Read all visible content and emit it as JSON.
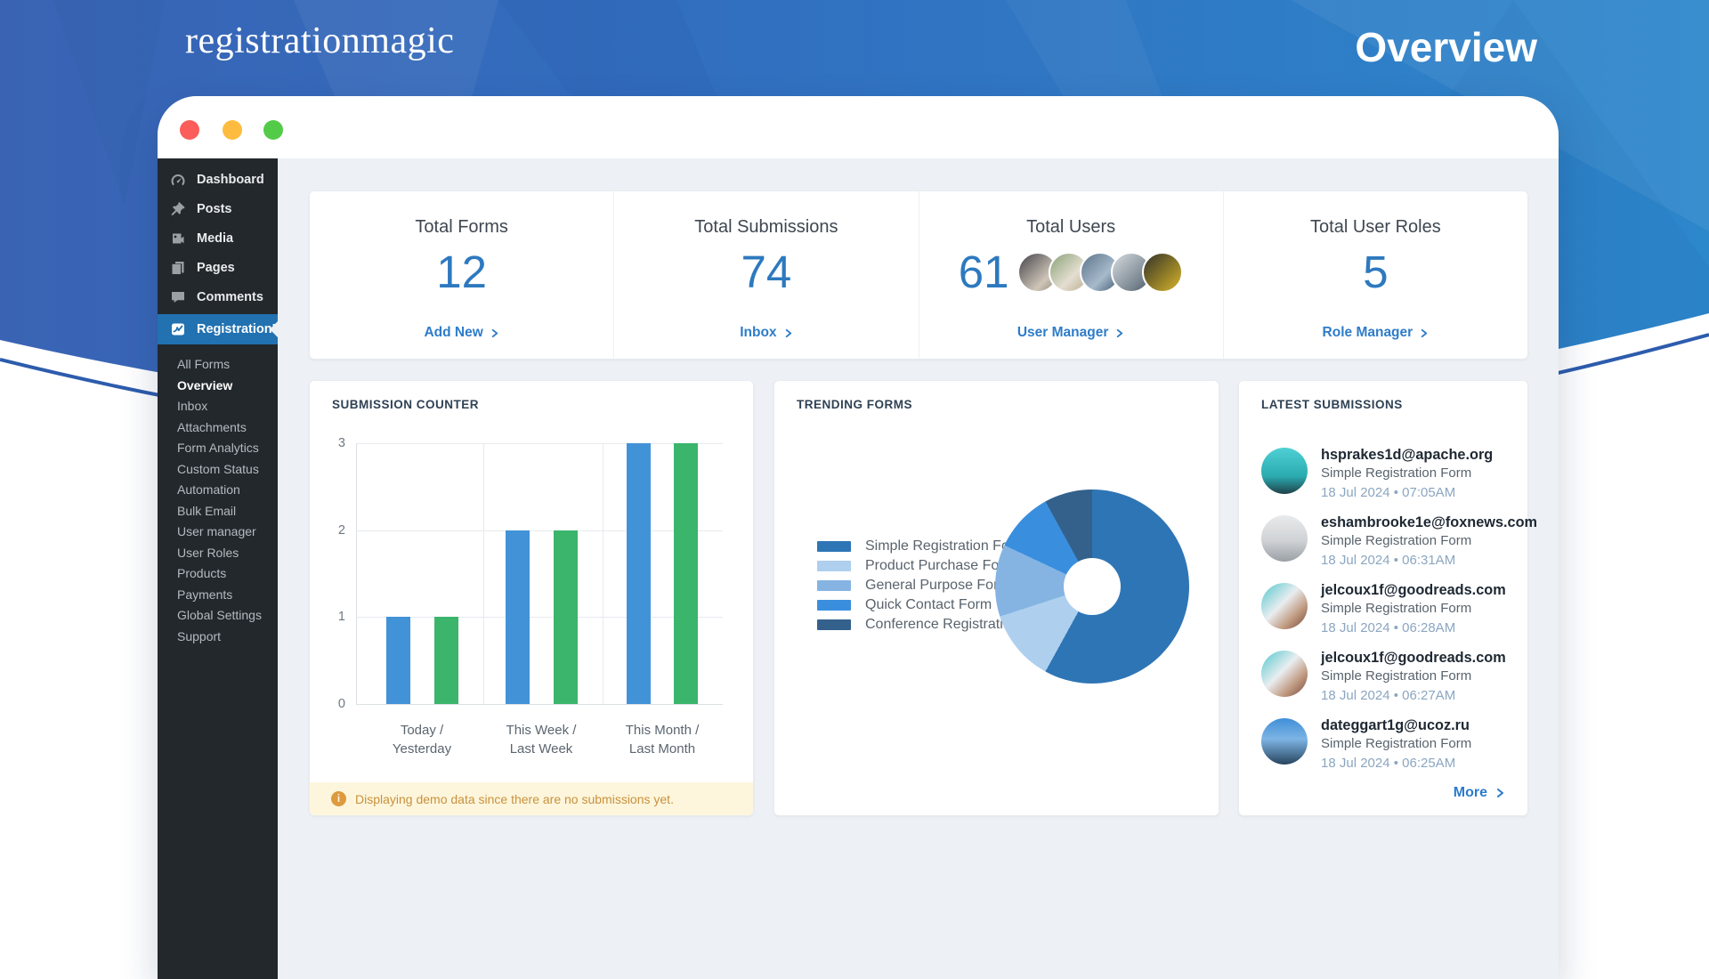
{
  "banner": {
    "logo_text": "registrationmagic",
    "page_title": "Overview"
  },
  "window": {
    "traffic_lights": [
      {
        "name": "close",
        "color": "#fb5d5b"
      },
      {
        "name": "minimize",
        "color": "#fdbc40"
      },
      {
        "name": "zoom",
        "color": "#54ca49"
      }
    ]
  },
  "sidebar": {
    "items": [
      {
        "label": "Dashboard"
      },
      {
        "label": "Posts"
      },
      {
        "label": "Media"
      },
      {
        "label": "Pages"
      },
      {
        "label": "Comments"
      },
      {
        "label": "RegistrationMagic"
      }
    ],
    "active_item": "RegistrationMagic",
    "submenu": [
      "All Forms",
      "Overview",
      "Inbox",
      "Attachments",
      "Form Analytics",
      "Custom Status",
      "Automation",
      "Bulk Email",
      "User manager",
      "User Roles",
      "Products",
      "Payments",
      "Global Settings",
      "Support"
    ],
    "active_submenu": "Overview"
  },
  "stats": {
    "cards": [
      {
        "label": "Total Forms",
        "value": "12",
        "link_label": "Add New"
      },
      {
        "label": "Total Submissions",
        "value": "74",
        "link_label": "Inbox"
      },
      {
        "label": "Total Users",
        "value": "61",
        "link_label": "User Manager",
        "avatar_count": 5
      },
      {
        "label": "Total User Roles",
        "value": "5",
        "link_label": "Role Manager"
      }
    ],
    "value_color": "#2d79bf",
    "link_color": "#2e7cc9"
  },
  "submission_counter": {
    "title": "SUBMISSION COUNTER",
    "demo_notice": "Displaying demo data since there are no submissions yet."
  },
  "trending_forms": {
    "title": "TRENDING FORMS"
  },
  "latest_submissions": {
    "title": "LATEST SUBMISSIONS",
    "more_label": "More",
    "items": [
      {
        "email": "hsprakes1d@apache.org",
        "form": "Simple Registration Form",
        "datetime": "18 Jul 2024 • 07:05AM"
      },
      {
        "email": "eshambrooke1e@foxnews.com",
        "form": "Simple Registration Form",
        "datetime": "18 Jul 2024 • 06:31AM"
      },
      {
        "email": "jelcoux1f@goodreads.com",
        "form": "Simple Registration Form",
        "datetime": "18 Jul 2024 • 06:28AM"
      },
      {
        "email": "jelcoux1f@goodreads.com",
        "form": "Simple Registration Form",
        "datetime": "18 Jul 2024 • 06:27AM"
      },
      {
        "email": "dateggart1g@ucoz.ru",
        "form": "Simple Registration Form",
        "datetime": "18 Jul 2024 • 06:25AM"
      }
    ]
  },
  "chart_data": [
    {
      "type": "bar",
      "title": "SUBMISSION COUNTER",
      "categories": [
        "Today / Yesterday",
        "This Week / Last Week",
        "This Month / Last Month"
      ],
      "cat_lines": [
        [
          "Today /",
          "Yesterday"
        ],
        [
          "This Week /",
          "Last Week"
        ],
        [
          "This Month /",
          "Last Month"
        ]
      ],
      "series": [
        {
          "name": "current",
          "values": [
            1,
            2,
            3
          ],
          "color": "#4292d7"
        },
        {
          "name": "previous",
          "values": [
            1,
            2,
            3
          ],
          "color": "#3bb56c"
        }
      ],
      "ylim": [
        0,
        3
      ],
      "yticks": [
        0,
        1,
        2,
        3
      ],
      "grid": true,
      "legend": "none"
    },
    {
      "type": "pie",
      "donut": true,
      "title": "TRENDING FORMS",
      "labels": [
        "Simple Registration Form",
        "Product Purchase Form",
        "General Purpose Form",
        "Quick Contact Form",
        "Conference Registration Form"
      ],
      "values": [
        58,
        12,
        12,
        10,
        8
      ],
      "colors": [
        "#2e75b5",
        "#aecfee",
        "#85b4e2",
        "#3a8ede",
        "#34618c"
      ],
      "legend_position": "left",
      "start_angle_deg": 0,
      "direction": "clockwise"
    }
  ]
}
